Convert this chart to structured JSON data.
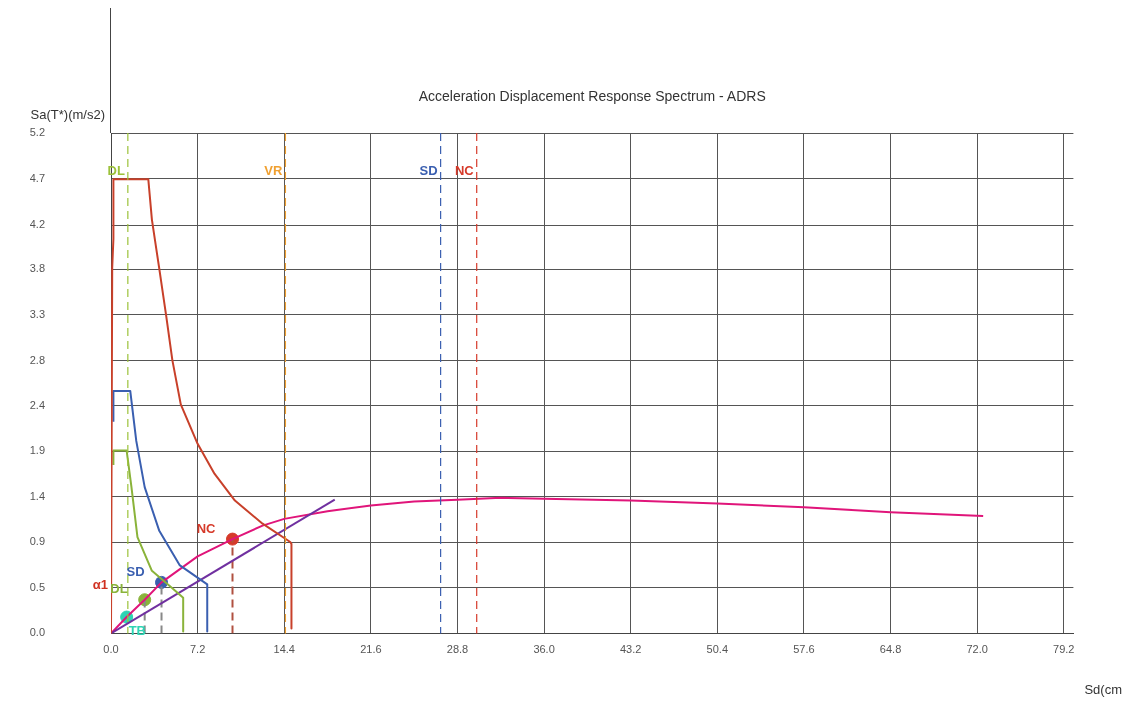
{
  "chart_data": {
    "type": "line",
    "title": "Acceleration Displacement Response Spectrum - ADRS",
    "xlabel": "Sd(cm",
    "ylabel": "Sa(T*)(m/s2)",
    "xlim": [
      0,
      80
    ],
    "xticks": [
      {
        "value": 0,
        "label": "0.0"
      },
      7.2,
      14.4,
      21.6,
      28.8,
      {
        "value": 36,
        "label": "36.0"
      },
      43.2,
      50.4,
      57.6,
      64.8,
      {
        "value": 72,
        "label": "72.0"
      },
      79.2
    ],
    "ylim": [
      0,
      5.2
    ],
    "yticks": [
      {
        "value": 0,
        "label": "0.0"
      },
      {
        "value": 0.473,
        "label": "0.5"
      },
      {
        "value": 0.945,
        "label": "0.9"
      },
      {
        "value": 1.418,
        "label": "1.4"
      },
      {
        "value": 1.891,
        "label": "1.9"
      },
      {
        "value": 2.364,
        "label": "2.4"
      },
      {
        "value": 2.836,
        "label": "2.8"
      },
      {
        "value": 3.309,
        "label": "3.3"
      },
      {
        "value": 3.782,
        "label": "3.8"
      },
      {
        "value": 4.24,
        "label": "4.2"
      },
      {
        "value": 4.727,
        "label": "4.7"
      },
      5.2
    ],
    "grid": true,
    "legend": false,
    "marker": "none",
    "line_style": "solid",
    "series": [
      {
        "color": "#c8402a",
        "x": [
          0,
          0.1,
          0.2,
          0.2,
          3.1,
          3.4,
          4.0,
          4.6,
          5.1,
          5.8,
          7.2,
          8.6,
          10.3,
          12.6,
          14.9,
          15.0,
          15.0
        ],
        "values": [
          0,
          3.8,
          4.1,
          4.72,
          4.72,
          4.3,
          3.8,
          3.29,
          2.84,
          2.38,
          1.97,
          1.66,
          1.38,
          1.14,
          0.95,
          0.93,
          0.05
        ]
      },
      {
        "color": "#3a5fb0",
        "x": [
          0.2,
          0.2,
          1.6,
          2.1,
          2.8,
          4.0,
          5.7,
          8.0,
          8.0
        ],
        "values": [
          2.2,
          2.52,
          2.52,
          2.0,
          1.52,
          1.07,
          0.71,
          0.51,
          0.02
        ]
      },
      {
        "color": "#8ab33a",
        "x": [
          0.2,
          0.2,
          1.3,
          1.7,
          2.2,
          3.4,
          5.1,
          6.0,
          6.0
        ],
        "values": [
          1.75,
          1.9,
          1.9,
          1.52,
          1.0,
          0.65,
          0.47,
          0.37,
          0.02
        ]
      },
      {
        "color": "#7030a0",
        "x": [
          0,
          18.6
        ],
        "values": [
          0,
          1.39
        ]
      },
      {
        "color": "#e0157a",
        "x": [
          0,
          1.3,
          2.8,
          4.2,
          7.2,
          10.1,
          12.6,
          14.4,
          18,
          21.6,
          25.2,
          28.8,
          32.4,
          36,
          43.2,
          50.4,
          57.6,
          64.8,
          72.5
        ],
        "values": [
          0,
          0.17,
          0.35,
          0.53,
          0.8,
          0.98,
          1.12,
          1.19,
          1.27,
          1.33,
          1.37,
          1.39,
          1.41,
          1.4,
          1.38,
          1.35,
          1.31,
          1.26,
          1.22
        ]
      },
      {
        "line_style": "dashed",
        "color": "#b05040",
        "x": [
          10.1,
          10.1
        ],
        "values": [
          0,
          0.98
        ]
      },
      {
        "line_style": "dashed",
        "color": "#888888",
        "x": [
          4.2,
          4.2
        ],
        "values": [
          0,
          0.53
        ]
      },
      {
        "line_style": "dashed",
        "color": "#888888",
        "x": [
          2.8,
          2.8
        ],
        "values": [
          0,
          0.35
        ]
      },
      {
        "type": "scatter",
        "marker": "circle",
        "color": "#2dd4b4",
        "x": [
          1.3
        ],
        "values": [
          0.17
        ]
      },
      {
        "type": "scatter",
        "marker": "circle",
        "color": "#8ab33a",
        "x": [
          2.8
        ],
        "values": [
          0.35
        ]
      },
      {
        "type": "scatter",
        "marker": "circle",
        "color": "#3a5fb0",
        "x": [
          4.2
        ],
        "values": [
          0.53
        ]
      },
      {
        "type": "scatter",
        "marker": "circle",
        "color": "#d63a2a",
        "x": [
          10.1
        ],
        "values": [
          0.98
        ]
      }
    ],
    "ref_lines": [
      {
        "axis": "x",
        "value": 1.4,
        "label": "DL",
        "color": "#9cc23a",
        "line_style": "dashed"
      },
      {
        "axis": "x",
        "value": 14.5,
        "label": "VR",
        "color": "#f0a030",
        "line_style": "dashed"
      },
      {
        "axis": "x",
        "value": 27.4,
        "label": "SD",
        "color": "#3a5fb0",
        "line_style": "dashed"
      },
      {
        "axis": "x",
        "value": 30.4,
        "label": "NC",
        "color": "#d63a2a",
        "line_style": "dashed"
      }
    ],
    "annotations": [
      {
        "text": "NC",
        "x": 10.1,
        "y": 0.98
      },
      {
        "text": "DL",
        "x": 2.8,
        "y": 0.35
      },
      {
        "text": "SD",
        "x": 4.2,
        "y": 0.53
      },
      {
        "text": "TB",
        "x": 1.3,
        "y": 0.17
      },
      "α1"
    ]
  }
}
